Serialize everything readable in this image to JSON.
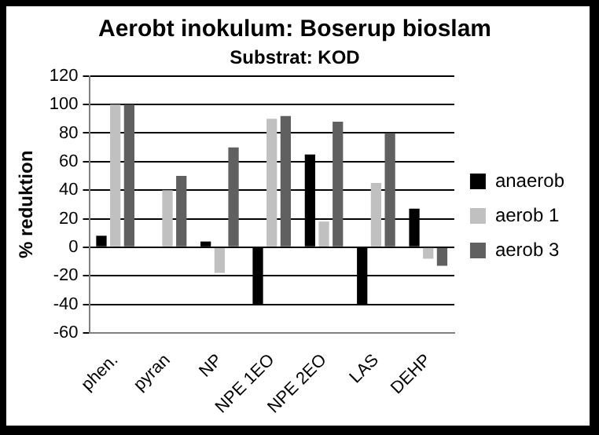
{
  "chart_data": {
    "type": "bar",
    "title": "Aerobt inokulum: Boserup bioslam",
    "subtitle": "Substrat: KOD",
    "ylabel": "% reduktion",
    "categories": [
      "phen.",
      "pyran",
      "NP",
      "NPE 1EO",
      "NPE 2EO",
      "LAS",
      "DEHP"
    ],
    "series": [
      {
        "name": "anaerob",
        "color": "#000000",
        "values": [
          8,
          null,
          4,
          -40,
          65,
          -40,
          27
        ]
      },
      {
        "name": "aerob 1",
        "color": "#c0c0c0",
        "values": [
          100,
          40,
          -18,
          90,
          18,
          45,
          -8
        ]
      },
      {
        "name": "aerob 3",
        "color": "#606060",
        "values": [
          100,
          50,
          70,
          92,
          88,
          80,
          -13
        ]
      }
    ],
    "ylim": [
      -60,
      120
    ],
    "yticks": [
      -60,
      -40,
      -20,
      0,
      20,
      40,
      60,
      80,
      100,
      120
    ],
    "grid": "y",
    "legend": "right"
  }
}
